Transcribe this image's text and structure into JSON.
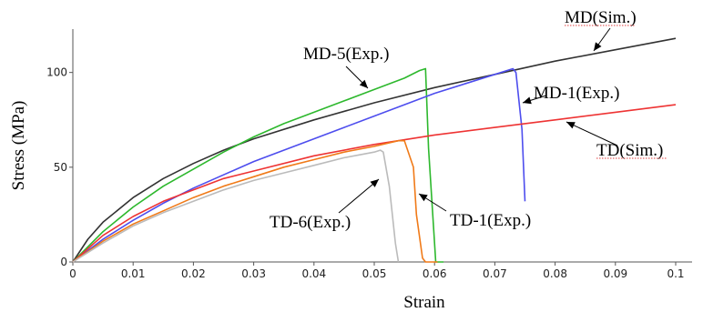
{
  "chart_data": {
    "type": "line",
    "title": "",
    "xlabel": "Strain",
    "ylabel": "Stress (MPa)",
    "xlim": [
      0,
      0.1
    ],
    "ylim": [
      0,
      120
    ],
    "xticks": [
      {
        "value": 0,
        "label": "0"
      },
      {
        "value": 0.01,
        "label": "0.01"
      },
      {
        "value": 0.02,
        "label": "0.02"
      },
      {
        "value": 0.03,
        "label": "0.03"
      },
      {
        "value": 0.04,
        "label": "0.04"
      },
      {
        "value": 0.05,
        "label": "0.05"
      },
      {
        "value": 0.06,
        "label": "0.06"
      },
      {
        "value": 0.07,
        "label": "0.07"
      },
      {
        "value": 0.08,
        "label": "0.08"
      },
      {
        "value": 0.09,
        "label": "0.09"
      },
      {
        "value": 0.1,
        "label": "0.1"
      }
    ],
    "yticks": [
      {
        "value": 0,
        "label": "0"
      },
      {
        "value": 50,
        "label": "50"
      },
      {
        "value": 100,
        "label": "100"
      }
    ],
    "grid": false,
    "legend": "none",
    "series": [
      {
        "id": "md-sim",
        "color": "#333333",
        "x": [
          0,
          0.0025,
          0.005,
          0.01,
          0.015,
          0.02,
          0.025,
          0.03,
          0.04,
          0.05,
          0.06,
          0.07,
          0.08,
          0.09,
          0.1
        ],
        "y": [
          0,
          12,
          21,
          34,
          44,
          52,
          59,
          65,
          75,
          84,
          92,
          99,
          106,
          112,
          118
        ]
      },
      {
        "id": "md-5",
        "color": "#2db82d",
        "x": [
          0,
          0.005,
          0.01,
          0.015,
          0.02,
          0.025,
          0.03,
          0.035,
          0.04,
          0.045,
          0.05,
          0.055,
          0.0575,
          0.0585,
          0.059,
          0.06,
          0.0602,
          0.0615
        ],
        "y": [
          0,
          16,
          29,
          40,
          49,
          58,
          66,
          73,
          79,
          85,
          91,
          97,
          101,
          102,
          60,
          10,
          0,
          0
        ]
      },
      {
        "id": "md-1",
        "color": "#4d4dee",
        "x": [
          0,
          0.005,
          0.01,
          0.015,
          0.02,
          0.025,
          0.03,
          0.035,
          0.04,
          0.045,
          0.05,
          0.055,
          0.06,
          0.065,
          0.07,
          0.073,
          0.0735,
          0.0745,
          0.075
        ],
        "y": [
          0,
          12,
          22,
          31,
          39,
          46,
          53,
          59,
          65,
          71,
          77,
          83,
          89,
          94,
          99,
          102,
          100,
          70,
          32
        ]
      },
      {
        "id": "td-sim",
        "color": "#ee3333",
        "x": [
          0,
          0.005,
          0.01,
          0.015,
          0.02,
          0.025,
          0.03,
          0.04,
          0.05,
          0.06,
          0.07,
          0.08,
          0.09,
          0.1
        ],
        "y": [
          0,
          14,
          24,
          32,
          38,
          44,
          48,
          56,
          62,
          67,
          71,
          75,
          79,
          83
        ]
      },
      {
        "id": "td-1",
        "color": "#f07a18",
        "x": [
          0,
          0.005,
          0.01,
          0.015,
          0.02,
          0.025,
          0.03,
          0.035,
          0.04,
          0.045,
          0.05,
          0.054,
          0.055,
          0.0565,
          0.057,
          0.058,
          0.0585,
          0.0605
        ],
        "y": [
          0,
          11,
          20,
          27,
          34,
          40,
          45,
          50,
          54,
          58,
          61,
          64,
          64,
          50,
          25,
          2,
          0,
          0
        ]
      },
      {
        "id": "td-6",
        "color": "#bbbbbb",
        "x": [
          0,
          0.005,
          0.01,
          0.015,
          0.02,
          0.025,
          0.03,
          0.035,
          0.04,
          0.045,
          0.05,
          0.051,
          0.0515,
          0.0525,
          0.0535,
          0.054
        ],
        "y": [
          0,
          10,
          19,
          26,
          32,
          38,
          43,
          47,
          51,
          55,
          58,
          59,
          58,
          40,
          10,
          0
        ]
      }
    ],
    "annotations": [
      {
        "text": "MD(Sim.)",
        "series": "md-sim"
      },
      {
        "text": "MD-5(Exp.)",
        "series": "md-5"
      },
      {
        "text": "MD-1(Exp.)",
        "series": "md-1"
      },
      {
        "text": "TD(Sim.)",
        "series": "td-sim"
      },
      {
        "text": "TD-6(Exp.)",
        "series": "td-6"
      },
      {
        "text": "TD-1(Exp.)",
        "series": "td-1"
      }
    ]
  }
}
